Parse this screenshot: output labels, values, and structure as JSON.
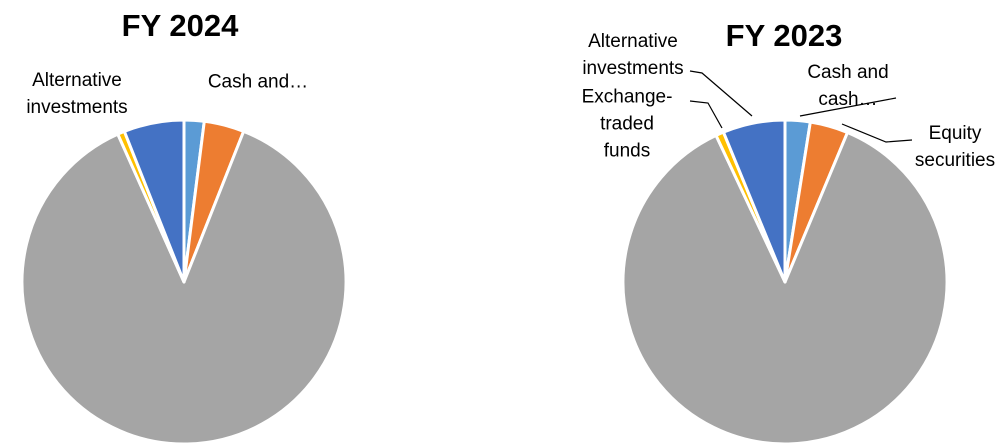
{
  "chart_data": [
    {
      "type": "pie",
      "title": "FY 2024",
      "categories": [
        "Cash and…",
        null,
        null,
        null,
        "Alternative investments"
      ],
      "values": [
        2,
        4,
        87.3,
        0.7,
        6
      ],
      "colors": [
        "#5b9bd5",
        "#ed7d31",
        "#a5a5a5",
        "#ffc000",
        "#4472c4"
      ]
    },
    {
      "type": "pie",
      "title": "FY 2023",
      "categories": [
        "Cash and cash…",
        "Equity securities",
        null,
        "Exchange-traded funds",
        "Alternative investments"
      ],
      "values": [
        2.5,
        3.8,
        86.7,
        0.8,
        6.2
      ],
      "colors": [
        "#5b9bd5",
        "#ed7d31",
        "#a5a5a5",
        "#ffc000",
        "#4472c4"
      ]
    }
  ]
}
